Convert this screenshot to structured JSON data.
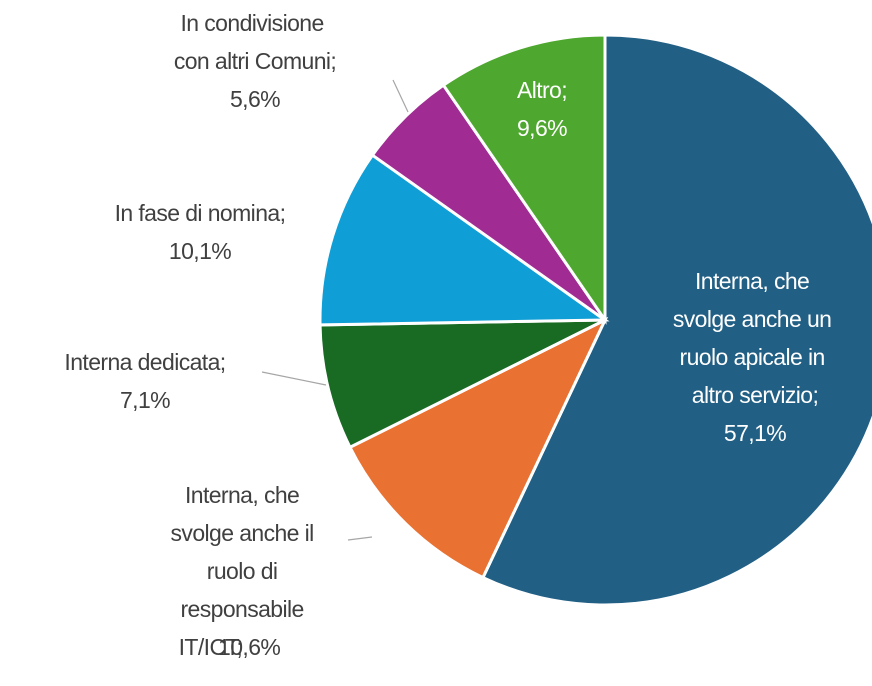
{
  "chart_data": {
    "type": "pie",
    "categories": [
      "Interna, che svolge anche un ruolo apicale in altro servizio;",
      "Interna, che svolge anche il ruolo di responsabile IT/ICT;",
      "Interna dedicata;",
      "In fase di nomina;",
      "In condivisione con altri Comuni;",
      "Altro;"
    ],
    "values": [
      57.1,
      10.6,
      7.1,
      10.1,
      5.6,
      9.6
    ],
    "value_labels": [
      "57,1%",
      "10,6%",
      "7,1%",
      "10,1%",
      "5,6%",
      "9,6%"
    ],
    "colors": [
      "#215f84",
      "#e97132",
      "#196b24",
      "#0f9ed5",
      "#a02b93",
      "#4ea72e"
    ]
  }
}
